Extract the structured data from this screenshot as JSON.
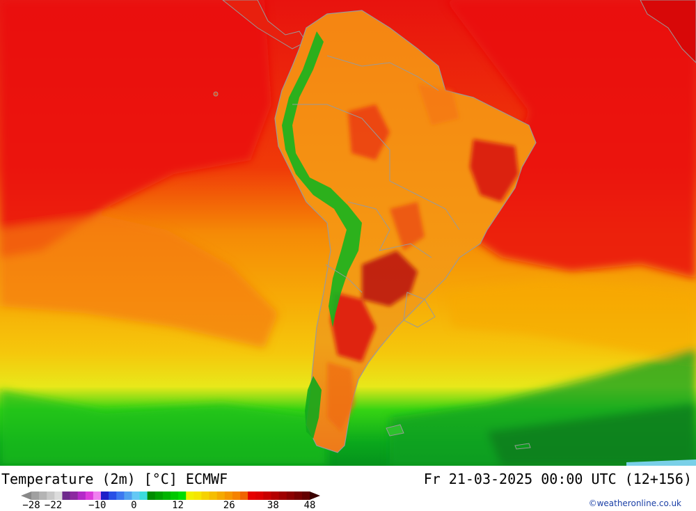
{
  "map": {
    "title": "Temperature (2m) [°C] ECMWF",
    "datetime": "Fr 21-03-2025 00:00 UTC (12+156)",
    "credit": "©weatheronline.co.uk"
  },
  "legend": {
    "min": -28,
    "max": 48,
    "step": 2,
    "ticks": [
      "-28",
      "-22",
      "-10",
      "0",
      "12",
      "26",
      "38",
      "48"
    ],
    "colors": [
      "#a0a0a0",
      "#b4b4b4",
      "#c8c8c8",
      "#dcdcdc",
      "#6e2a8c",
      "#8c2aa0",
      "#b42ac8",
      "#dc3cdc",
      "#f080f0",
      "#1e1ec8",
      "#2850e6",
      "#3c78f0",
      "#50a0f0",
      "#64c8f5",
      "#3cdcdc",
      "#008c00",
      "#00a000",
      "#00b400",
      "#00c800",
      "#00dc00",
      "#f0f000",
      "#f5e600",
      "#f5d200",
      "#f5be00",
      "#f5aa00",
      "#f59600",
      "#f58200",
      "#f06400",
      "#e60000",
      "#dc0000",
      "#c80000",
      "#b40000",
      "#a00000",
      "#8c0000",
      "#780000",
      "#640000"
    ]
  }
}
